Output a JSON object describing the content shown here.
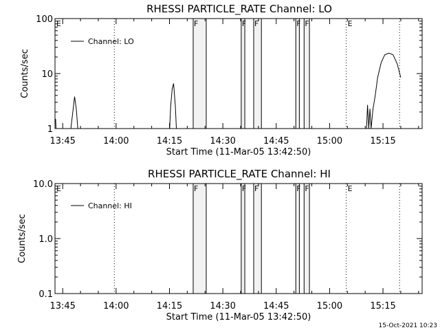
{
  "timestamp": "15-Oct-2021 10:23",
  "chart_data": [
    {
      "type": "line",
      "title": "RHESSI PARTICLE_RATE Channel: LO",
      "xlabel": "Start Time (11-Mar-05 13:42:50)",
      "ylabel": "Counts/sec",
      "yscale": "log",
      "ylim": [
        1,
        100
      ],
      "yticks": [
        {
          "v": 1,
          "label": "1"
        },
        {
          "v": 10,
          "label": "10"
        },
        {
          "v": 100,
          "label": "100"
        }
      ],
      "xlim": [
        "13:42:50",
        "15:26:00"
      ],
      "xticks": [
        "13:45",
        "14:00",
        "14:15",
        "14:30",
        "14:45",
        "15:00",
        "15:15"
      ],
      "series": [
        {
          "name": "Channel: LO",
          "color": "#000000",
          "points": [
            [
              "13:43:00",
              1.5
            ],
            [
              "13:43:10",
              0.8
            ],
            [
              "13:47:10",
              0.8
            ],
            [
              "13:47:50",
              2.0
            ],
            [
              "13:48:20",
              3.8
            ],
            [
              "13:48:50",
              2.2
            ],
            [
              "13:49:20",
              0.8
            ],
            [
              "14:15:00",
              0.8
            ],
            [
              "14:15:20",
              2.5
            ],
            [
              "14:15:45",
              5.2
            ],
            [
              "14:16:10",
              6.6
            ],
            [
              "14:16:40",
              2.5
            ],
            [
              "14:17:00",
              0.8
            ],
            [
              "15:10:20",
              0.8
            ],
            [
              "15:10:40",
              2.7
            ],
            [
              "15:11:00",
              1.0
            ],
            [
              "15:11:20",
              2.3
            ],
            [
              "15:11:40",
              1.0
            ],
            [
              "15:12:10",
              2.2
            ],
            [
              "15:12:50",
              4.0
            ],
            [
              "15:13:30",
              8.5
            ],
            [
              "15:14:30",
              16.0
            ],
            [
              "15:15:30",
              22.0
            ],
            [
              "15:16:40",
              23.5
            ],
            [
              "15:17:50",
              22.0
            ],
            [
              "15:19:00",
              15.0
            ],
            [
              "15:20:00",
              8.5
            ]
          ]
        }
      ],
      "legend": {
        "position": "top-left",
        "entries": [
          "Channel: LO"
        ]
      }
    },
    {
      "type": "line",
      "title": "RHESSI PARTICLE_RATE Channel: HI",
      "xlabel": "Start Time (11-Mar-05 13:42:50)",
      "ylabel": "Counts/sec",
      "yscale": "log",
      "ylim": [
        0.1,
        10
      ],
      "yticks": [
        {
          "v": 0.1,
          "label": "0.1"
        },
        {
          "v": 1,
          "label": "1.0"
        },
        {
          "v": 10,
          "label": "10.0"
        }
      ],
      "xlim": [
        "13:42:50",
        "15:26:00"
      ],
      "xticks": [
        "13:45",
        "14:00",
        "14:15",
        "14:30",
        "14:45",
        "15:00",
        "15:15"
      ],
      "series": [
        {
          "name": "Channel: HI",
          "color": "#000000",
          "points": []
        }
      ],
      "legend": {
        "position": "top-left",
        "entries": [
          "Channel: HI"
        ]
      }
    }
  ],
  "flag_regions": [
    {
      "label": "F",
      "start": "14:21:40",
      "end": "14:25:20"
    },
    {
      "label": "F",
      "start": "14:35:10",
      "end": "14:36:10"
    },
    {
      "label": "F",
      "start": "14:38:40",
      "end": "14:40:50"
    },
    {
      "label": "F",
      "start": "14:50:30",
      "end": "14:51:30"
    },
    {
      "label": "F",
      "start": "14:52:50",
      "end": "14:54:20"
    }
  ],
  "dotted_markers": [
    {
      "label": "E",
      "time": "13:42:50"
    },
    {
      "label": "",
      "time": "13:59:30"
    },
    {
      "label": "E",
      "time": "15:04:40"
    },
    {
      "label": "",
      "time": "15:19:40"
    }
  ]
}
